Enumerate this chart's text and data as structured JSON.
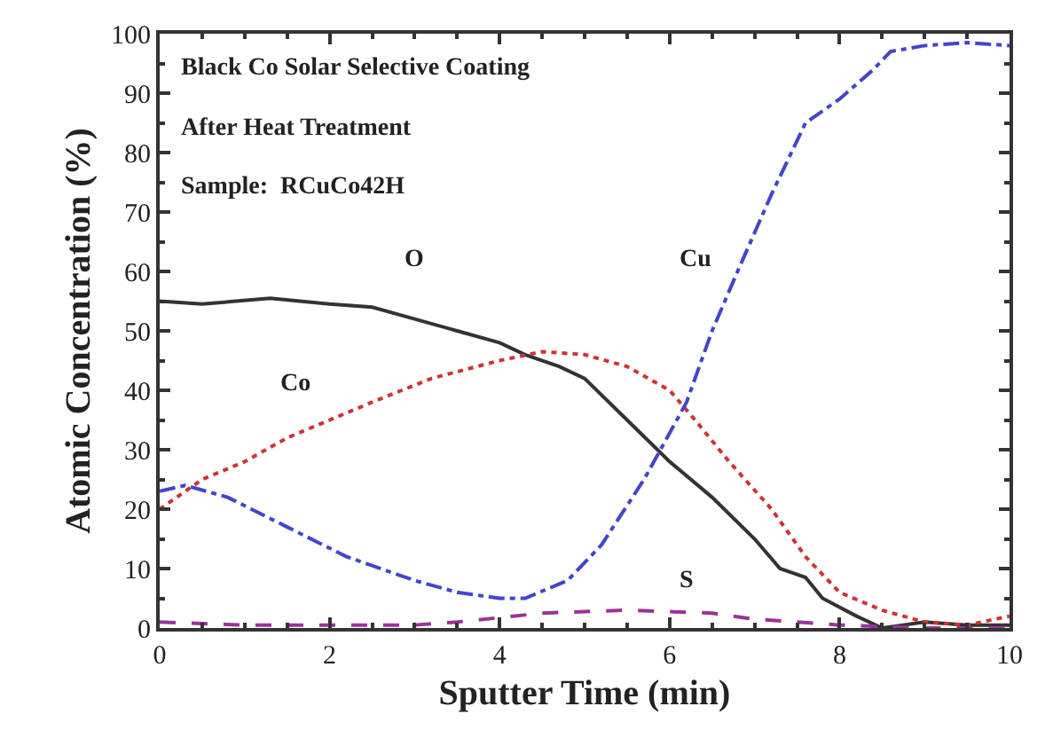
{
  "chart_data": {
    "type": "line",
    "xlabel": "Sputter Time (min)",
    "ylabel": "Atomic Concentration (%)",
    "annotations": [
      "Black Co Solar Selective Coating",
      "After Heat Treatment",
      "Sample:  RCuCo42H"
    ],
    "xlim": [
      0,
      10
    ],
    "xticks": [
      0,
      2,
      4,
      6,
      8,
      10
    ],
    "ylim": [
      0,
      100
    ],
    "yticks": [
      0,
      10,
      20,
      30,
      40,
      50,
      60,
      70,
      80,
      90,
      100
    ],
    "legend": false,
    "marker": "none",
    "series": [
      {
        "name": "O",
        "color": "#333333",
        "line_style": "solid",
        "x": [
          0,
          0.5,
          1.3,
          2,
          2.5,
          3,
          3.5,
          4,
          4.3,
          4.7,
          5,
          5.5,
          6,
          6.5,
          7,
          7.3,
          7.5,
          7.6,
          7.8,
          8.2,
          8.5,
          9,
          9.5,
          10
        ],
        "values": [
          55,
          54.5,
          55.5,
          54.5,
          54,
          52,
          50,
          48,
          46,
          44,
          42,
          35,
          28,
          22,
          15,
          10,
          9,
          8.5,
          5,
          2,
          0,
          1,
          0.5,
          0.5
        ]
      },
      {
        "name": "Co",
        "color": "#cc3333",
        "line_style": "dotted",
        "x": [
          0,
          0.5,
          1,
          1.5,
          2,
          2.5,
          3.2,
          4,
          4.5,
          5,
          5.5,
          6,
          6.3,
          6.7,
          7.2,
          7.6,
          8,
          8.5,
          9,
          9.5,
          10
        ],
        "values": [
          20,
          25,
          28,
          32,
          35,
          38,
          42,
          45,
          46.5,
          46,
          44,
          40,
          35,
          28,
          20,
          12,
          6,
          3,
          1,
          0.5,
          2
        ]
      },
      {
        "name": "Cu",
        "color": "#4444cc",
        "line_style": "dashdot",
        "x": [
          0,
          0.3,
          0.8,
          1.5,
          2.2,
          3,
          3.5,
          4,
          4.3,
          4.8,
          5.2,
          5.7,
          6.2,
          6.5,
          6.8,
          7.2,
          7.6,
          8,
          8.4,
          8.6,
          9,
          9.5,
          10
        ],
        "values": [
          23,
          24,
          22,
          17,
          12,
          8,
          6,
          5,
          5,
          8,
          14,
          25,
          38,
          50,
          60,
          73,
          85,
          89,
          94,
          97,
          98,
          98.5,
          98
        ]
      },
      {
        "name": "S",
        "color": "#993399",
        "line_style": "dashed",
        "x": [
          0,
          1,
          2,
          3,
          3.5,
          4.5,
          5.5,
          6.5,
          7,
          8,
          9,
          10
        ],
        "values": [
          1,
          0.5,
          0.5,
          0.5,
          1,
          2.5,
          3,
          2.5,
          1.5,
          0.5,
          0,
          0
        ]
      }
    ]
  }
}
